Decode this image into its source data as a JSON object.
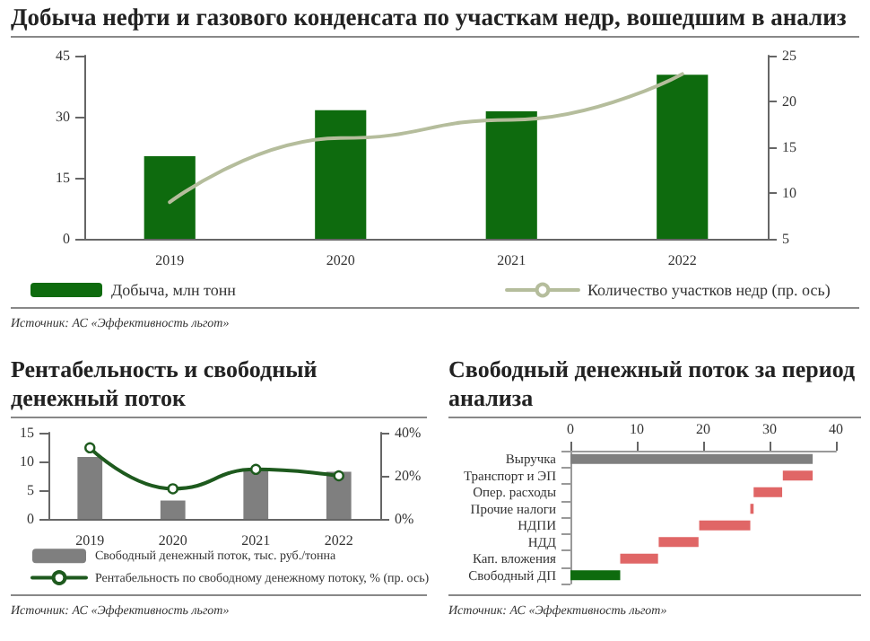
{
  "chart_data": [
    {
      "type": "bar",
      "title": "Добыча нефти и газового конденсата по участкам недр, вошедшим в анализ",
      "categories": [
        "2019",
        "2020",
        "2021",
        "2022"
      ],
      "series": [
        {
          "type": "bar",
          "name": "Добыча, млн тонн",
          "color": "#0e6b0e",
          "values": [
            20.3,
            31.6,
            31.3,
            40.3
          ]
        },
        {
          "type": "line",
          "name": "Количество участков недр (пр. ось)",
          "color": "#b5bd9c",
          "values": [
            9,
            16,
            18,
            23
          ],
          "axis": "y2",
          "marker": "none"
        }
      ],
      "ylim": [
        0,
        45
      ],
      "yticks": [
        0,
        15,
        30,
        45
      ],
      "y2lim": [
        5,
        25
      ],
      "y2ticks": [
        5,
        10,
        15,
        20,
        25
      ],
      "legend": "bottom",
      "annotations": [
        "Источник: АС «Эффективность льгот»"
      ]
    },
    {
      "type": "bar",
      "title": "Рентабельность и свободный денежный поток",
      "categories": [
        "2019",
        "2020",
        "2021",
        "2022"
      ],
      "series": [
        {
          "type": "bar",
          "name": "Свободный денежный поток, тыс. руб./тонна",
          "color": "#7f7f7f",
          "values": [
            10.8,
            3.2,
            8.5,
            8.2
          ]
        },
        {
          "type": "line",
          "name": "Рентабельность по свободному денежному потоку, % (пр. ось)",
          "color": "#1e5a1e",
          "values": [
            33,
            14,
            23,
            20
          ],
          "axis": "y2",
          "marker": "circle"
        }
      ],
      "ylim": [
        0,
        15
      ],
      "yticks": [
        0,
        5,
        10,
        15
      ],
      "y2lim": [
        0,
        40
      ],
      "y2ticks": [
        {
          "value": 0,
          "label": "0%"
        },
        {
          "value": 20,
          "label": "20%"
        },
        {
          "value": 40,
          "label": "40%"
        }
      ],
      "legend": "bottom",
      "annotations": [
        "Источник: АС «Эффективность льгот»"
      ]
    },
    {
      "type": "bar",
      "orientation": "horizontal",
      "title": "Свободный денежный поток за период анализа",
      "categories": [
        "Выручка",
        "Транспорт и ЭП",
        "Опер. расходы",
        "Прочие налоги",
        "НДПИ",
        "НДД",
        "Кап. вложения",
        "Свободный ДП"
      ],
      "values": [
        36.5,
        4.5,
        4.3,
        0.5,
        7.7,
        6,
        5.7,
        7.5
      ],
      "base": [
        0,
        32,
        27.6,
        27.1,
        19.4,
        13.3,
        7.5,
        0
      ],
      "colors": [
        "#7f7f7f",
        "#e06666",
        "#e06666",
        "#e06666",
        "#e06666",
        "#e06666",
        "#e06666",
        "#0e6b0e"
      ],
      "xlim": [
        0,
        40
      ],
      "xticks": [
        0,
        10,
        20,
        30,
        40
      ],
      "annotations": [
        "Источник: АС «Эффективность льгот»"
      ]
    }
  ]
}
